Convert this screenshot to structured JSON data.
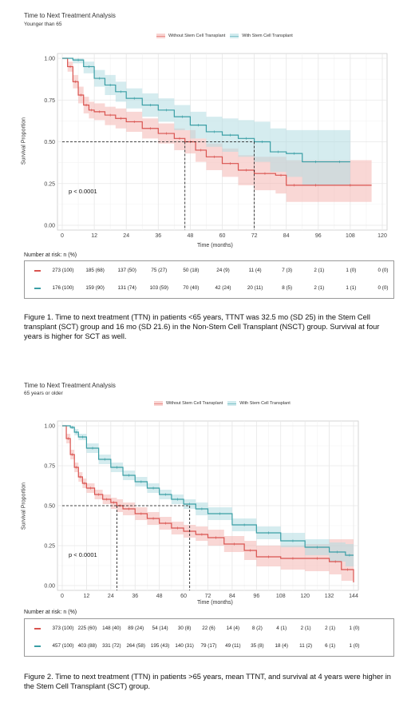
{
  "colors": {
    "without": "#d9534f",
    "with": "#3a9ea5",
    "without_fill": "#f4b6b3",
    "with_fill": "#b3dde2"
  },
  "legend": {
    "without": "Without Stem Cell Transplant",
    "with": "With Stem Cell Transplant"
  },
  "fig1": {
    "title": "Time to Next Treatment Analysis",
    "subtitle": "Younger than 65",
    "ylabel": "Survival Proportion",
    "xlabel": "Time (months)",
    "pvalue": "p < 0.0001",
    "risk_title": "Number at risk: n (%)",
    "risk_without": [
      "273 (100)",
      "185 (68)",
      "137 (50)",
      "75 (27)",
      "50 (18)",
      "24 (9)",
      "11 (4)",
      "7 (3)",
      "2 (1)",
      "1 (0)",
      "0 (0)"
    ],
    "risk_with": [
      "176 (100)",
      "159 (90)",
      "131 (74)",
      "103 (59)",
      "70 (40)",
      "42 (24)",
      "20 (11)",
      "8 (5)",
      "2 (1)",
      "1 (1)",
      "0 (0)"
    ],
    "caption": "Figure 1. Time to next treatment (TTN) in patients <65 years,  TTNT was 32.5 mo (SD 25) in the Stem Cell transplant (SCT) group and 16 mo (SD 21.6) in the Non-Stem Cell Transplant (NSCT) group. Survival at four years is higher for SCT as well."
  },
  "fig2": {
    "title": "Time to Next Treatment Analysis",
    "subtitle": "65 years or older",
    "ylabel": "Survival Proportion",
    "xlabel": "Time (months)",
    "pvalue": "p < 0.0001",
    "risk_title": "Number at risk: n (%)",
    "risk_without": [
      "373 (100)",
      "225 (60)",
      "148 (40)",
      "89 (24)",
      "54 (14)",
      "30 (8)",
      "22 (6)",
      "14 (4)",
      "8 (2)",
      "4 (1)",
      "2 (1)",
      "2 (1)",
      "1 (0)"
    ],
    "risk_with": [
      "457 (100)",
      "403 (88)",
      "331 (72)",
      "264 (58)",
      "195 (43)",
      "140 (31)",
      "79 (17)",
      "49 (11)",
      "35 (8)",
      "18 (4)",
      "11 (2)",
      "6 (1)",
      "1 (0)"
    ],
    "caption": "Figure 2.  Time to next treatment (TTN) in patients >65 years, mean TTNT, and survival at 4 years were higher in the Stem Cell Transplant (SCT) group."
  },
  "chart_data": [
    {
      "type": "line",
      "title": "Time to Next Treatment Analysis",
      "subtitle": "Younger than 65",
      "xlabel": "Time (months)",
      "ylabel": "Survival Proportion",
      "xlim": [
        0,
        120
      ],
      "ylim": [
        0,
        1
      ],
      "x_ticks": [
        0,
        12,
        24,
        36,
        48,
        60,
        72,
        84,
        96,
        108,
        120
      ],
      "y_ticks": [
        0.0,
        0.25,
        0.5,
        0.75,
        1.0
      ],
      "y_tick_labels": [
        "0.00",
        "0.25",
        "0.50",
        "0.75",
        "1.00"
      ],
      "grid": true,
      "legend_position": "top",
      "median_lines": [
        {
          "x": 46,
          "y": 0.5
        },
        {
          "x": 72,
          "y": 0.5
        }
      ],
      "series": [
        {
          "name": "Without Stem Cell Transplant",
          "x": [
            0,
            2,
            4,
            6,
            8,
            10,
            12,
            16,
            20,
            24,
            30,
            36,
            42,
            46,
            50,
            54,
            60,
            66,
            72,
            80,
            84,
            90,
            100,
            116
          ],
          "y": [
            1.0,
            0.95,
            0.86,
            0.78,
            0.72,
            0.69,
            0.68,
            0.66,
            0.64,
            0.62,
            0.58,
            0.55,
            0.52,
            0.5,
            0.45,
            0.41,
            0.37,
            0.33,
            0.31,
            0.3,
            0.24,
            0.24,
            0.24,
            0.24
          ],
          "lower": [
            1.0,
            0.92,
            0.82,
            0.73,
            0.67,
            0.64,
            0.63,
            0.6,
            0.58,
            0.56,
            0.52,
            0.49,
            0.45,
            0.43,
            0.38,
            0.33,
            0.29,
            0.24,
            0.21,
            0.19,
            0.14,
            0.14,
            0.14,
            0.14
          ],
          "upper": [
            1.0,
            0.98,
            0.9,
            0.83,
            0.77,
            0.74,
            0.73,
            0.71,
            0.7,
            0.68,
            0.64,
            0.61,
            0.58,
            0.57,
            0.52,
            0.49,
            0.46,
            0.42,
            0.41,
            0.41,
            0.39,
            0.39,
            0.39,
            0.39
          ]
        },
        {
          "name": "With Stem Cell Transplant",
          "x": [
            0,
            4,
            8,
            12,
            16,
            20,
            24,
            30,
            36,
            42,
            48,
            54,
            60,
            66,
            72,
            78,
            84,
            90,
            100,
            108
          ],
          "y": [
            1.0,
            0.99,
            0.95,
            0.88,
            0.84,
            0.8,
            0.76,
            0.72,
            0.69,
            0.65,
            0.6,
            0.56,
            0.54,
            0.52,
            0.5,
            0.44,
            0.43,
            0.38,
            0.38,
            0.38
          ],
          "lower": [
            1.0,
            0.97,
            0.91,
            0.83,
            0.78,
            0.74,
            0.7,
            0.65,
            0.62,
            0.57,
            0.52,
            0.47,
            0.44,
            0.41,
            0.38,
            0.32,
            0.29,
            0.24,
            0.24,
            0.24
          ],
          "upper": [
            1.0,
            1.0,
            0.98,
            0.93,
            0.9,
            0.86,
            0.82,
            0.79,
            0.76,
            0.72,
            0.68,
            0.65,
            0.64,
            0.63,
            0.62,
            0.58,
            0.57,
            0.57,
            0.57,
            0.57
          ]
        }
      ]
    },
    {
      "type": "line",
      "title": "Time to Next Treatment Analysis",
      "subtitle": "65 years or older",
      "xlabel": "Time (months)",
      "ylabel": "Survival Proportion",
      "xlim": [
        0,
        144
      ],
      "ylim": [
        0,
        1
      ],
      "x_ticks": [
        0,
        12,
        24,
        36,
        48,
        60,
        72,
        84,
        96,
        108,
        120,
        132,
        144
      ],
      "y_ticks": [
        0.0,
        0.25,
        0.5,
        0.75,
        1.0
      ],
      "y_tick_labels": [
        "0.00",
        "0.25",
        "0.50",
        "0.75",
        "1.00"
      ],
      "grid": true,
      "legend_position": "top",
      "median_lines": [
        {
          "x": 27,
          "y": 0.5
        },
        {
          "x": 63,
          "y": 0.5
        }
      ],
      "series": [
        {
          "name": "Without Stem Cell Transplant",
          "x": [
            0,
            2,
            4,
            6,
            8,
            10,
            12,
            16,
            20,
            24,
            27,
            30,
            36,
            42,
            48,
            54,
            60,
            66,
            72,
            80,
            90,
            96,
            108,
            120,
            132,
            138,
            144
          ],
          "y": [
            1.0,
            0.92,
            0.82,
            0.74,
            0.68,
            0.64,
            0.61,
            0.57,
            0.54,
            0.52,
            0.5,
            0.48,
            0.45,
            0.42,
            0.39,
            0.36,
            0.34,
            0.32,
            0.3,
            0.26,
            0.22,
            0.18,
            0.17,
            0.17,
            0.15,
            0.1,
            0.02
          ],
          "lower": [
            1.0,
            0.89,
            0.79,
            0.71,
            0.65,
            0.61,
            0.58,
            0.54,
            0.51,
            0.48,
            0.46,
            0.44,
            0.41,
            0.38,
            0.35,
            0.32,
            0.3,
            0.28,
            0.25,
            0.21,
            0.16,
            0.12,
            0.1,
            0.09,
            0.07,
            0.03,
            0.0
          ],
          "upper": [
            1.0,
            0.95,
            0.85,
            0.77,
            0.71,
            0.67,
            0.64,
            0.6,
            0.57,
            0.55,
            0.54,
            0.52,
            0.49,
            0.46,
            0.43,
            0.4,
            0.38,
            0.37,
            0.35,
            0.31,
            0.28,
            0.25,
            0.25,
            0.26,
            0.29,
            0.29,
            0.29
          ]
        },
        {
          "name": "With Stem Cell Transplant",
          "x": [
            0,
            4,
            6,
            8,
            12,
            18,
            24,
            30,
            36,
            42,
            48,
            54,
            60,
            66,
            72,
            84,
            96,
            108,
            120,
            132,
            140,
            144
          ],
          "y": [
            1.0,
            0.99,
            0.96,
            0.93,
            0.86,
            0.79,
            0.74,
            0.69,
            0.65,
            0.61,
            0.57,
            0.54,
            0.51,
            0.48,
            0.45,
            0.38,
            0.33,
            0.28,
            0.24,
            0.21,
            0.19,
            0.19
          ],
          "lower": [
            1.0,
            0.98,
            0.94,
            0.91,
            0.83,
            0.76,
            0.71,
            0.66,
            0.62,
            0.58,
            0.54,
            0.51,
            0.48,
            0.44,
            0.41,
            0.34,
            0.29,
            0.24,
            0.19,
            0.15,
            0.12,
            0.12
          ],
          "upper": [
            1.0,
            1.0,
            0.98,
            0.95,
            0.89,
            0.82,
            0.77,
            0.72,
            0.68,
            0.64,
            0.6,
            0.57,
            0.54,
            0.52,
            0.49,
            0.42,
            0.37,
            0.33,
            0.29,
            0.27,
            0.26,
            0.26
          ]
        }
      ]
    }
  ]
}
